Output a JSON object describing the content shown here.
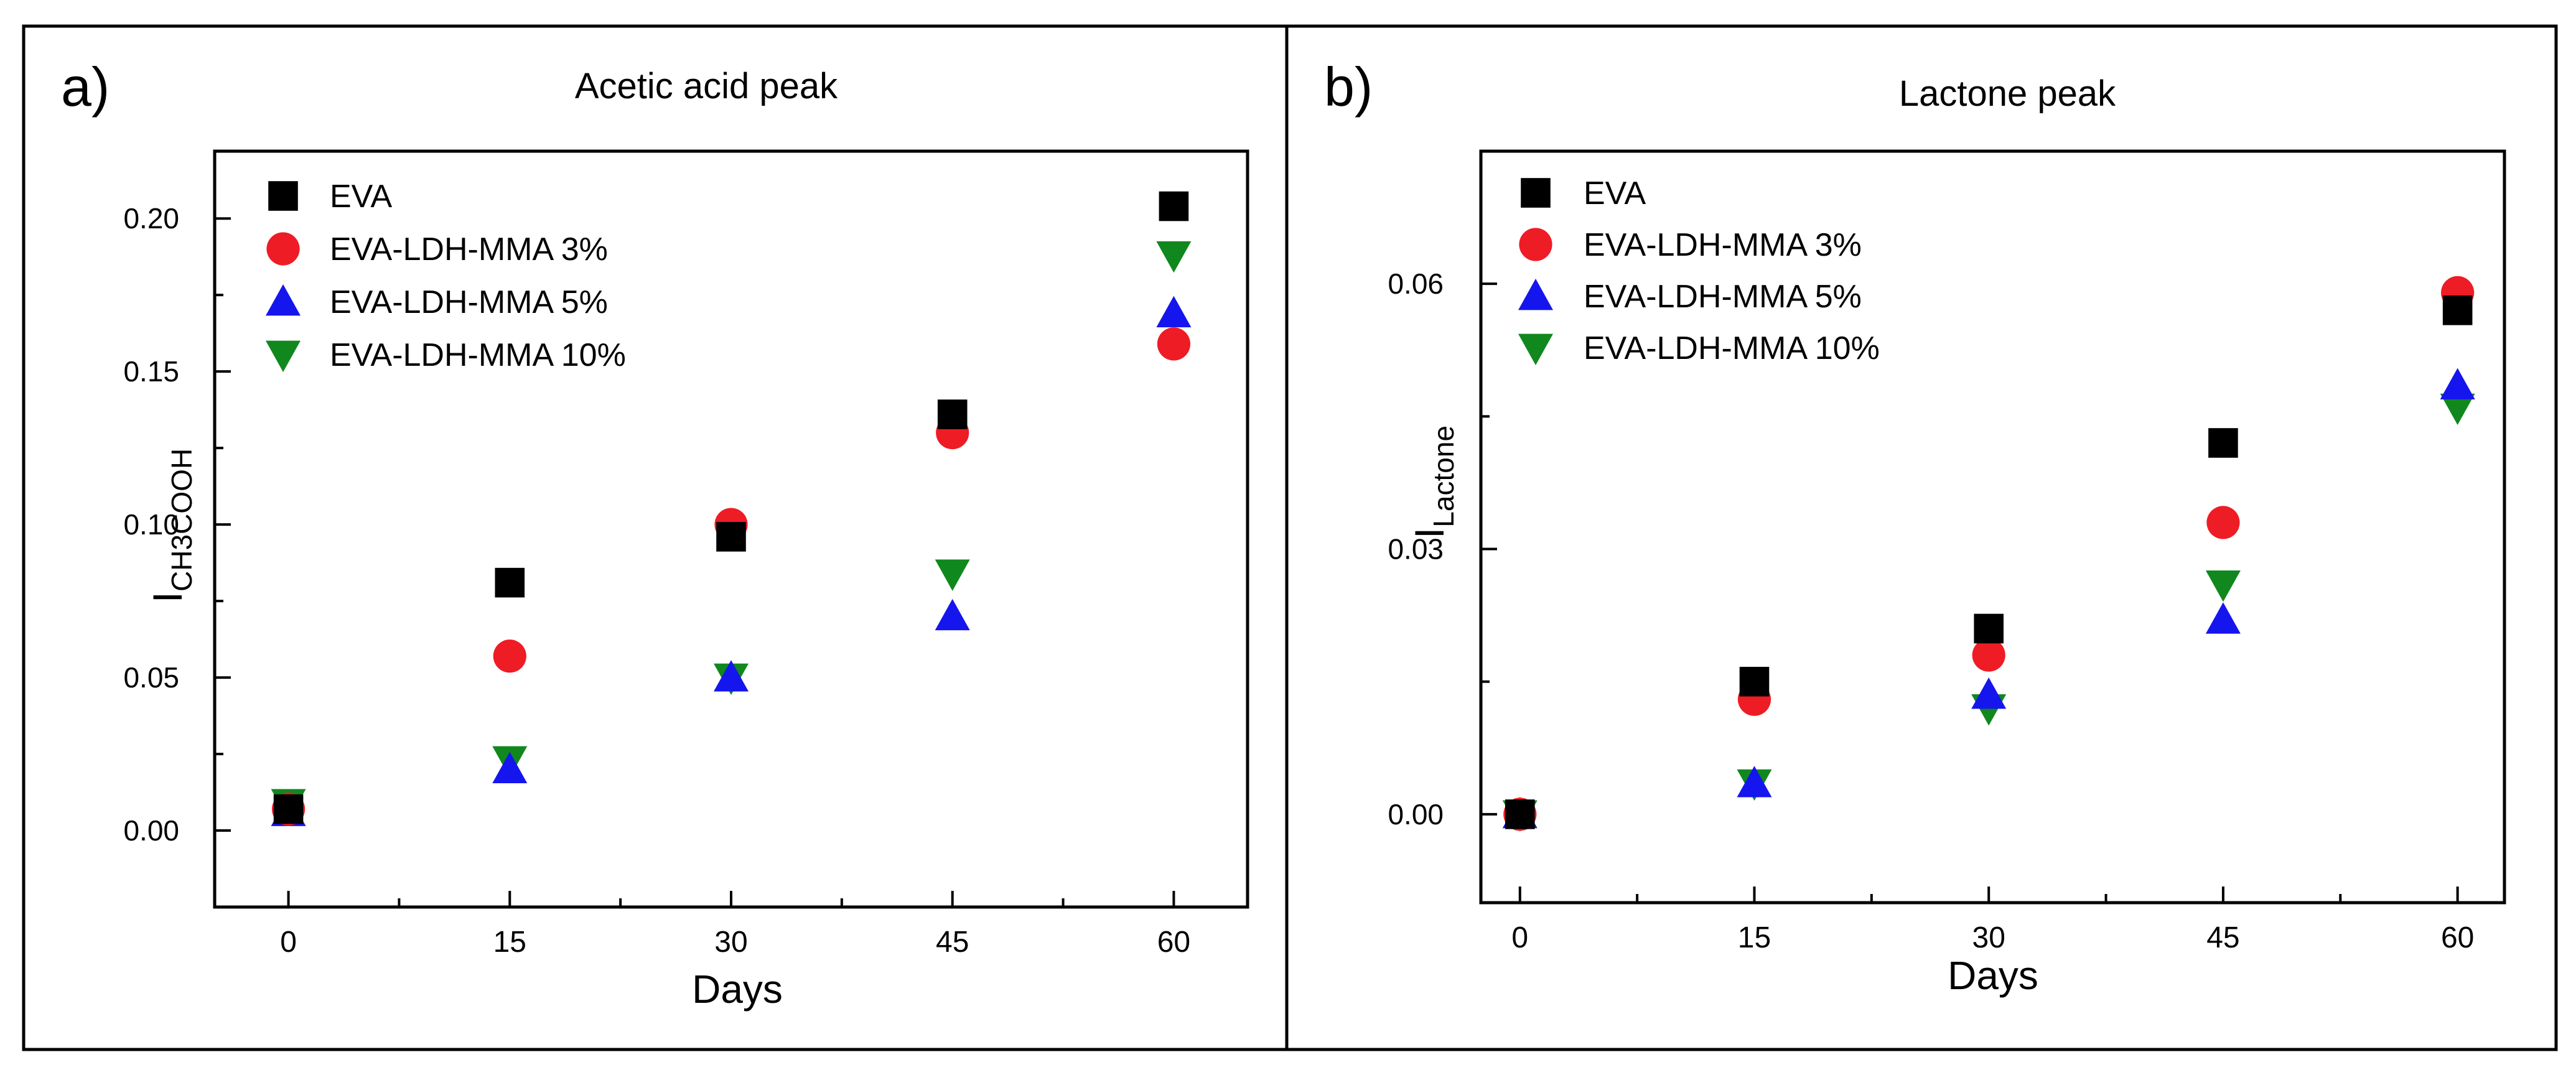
{
  "chart_data": [
    {
      "type": "scatter",
      "panel_label": "a)",
      "title": "Acetic acid peak",
      "xlabel": "Days",
      "ylabel": "I",
      "ylabel_sub": "CH3COOH",
      "xlim": [
        -5,
        65
      ],
      "ylim": [
        -0.025,
        0.222
      ],
      "xticks": [
        0,
        15,
        30,
        45,
        60
      ],
      "yticks": [
        0.0,
        0.05,
        0.1,
        0.15,
        0.2
      ],
      "xticklabels": [
        "0",
        "15",
        "30",
        "45",
        "60"
      ],
      "yticklabels": [
        "0.00",
        "0.05",
        "0.10",
        "0.15",
        "0.20"
      ],
      "legend_position": "top-left",
      "x": [
        0,
        15,
        30,
        45,
        60
      ],
      "series": [
        {
          "name": "EVA",
          "marker": "square",
          "color": "#000000",
          "values": [
            0.007,
            0.081,
            0.096,
            0.136,
            0.204
          ]
        },
        {
          "name": "EVA-LDH-MMA 3%",
          "marker": "circle",
          "color": "#ee1c25",
          "values": [
            0.007,
            0.057,
            0.1,
            0.13,
            0.159
          ]
        },
        {
          "name": "EVA-LDH-MMA 5%",
          "marker": "triangle-up",
          "color": "#1515ee",
          "values": [
            0.006,
            0.02,
            0.05,
            0.07,
            0.169
          ]
        },
        {
          "name": "EVA-LDH-MMA 10%",
          "marker": "triangle-down",
          "color": "#10881e",
          "values": [
            0.009,
            0.023,
            0.05,
            0.084,
            0.188
          ]
        }
      ]
    },
    {
      "type": "scatter",
      "panel_label": "b)",
      "title": "Lactone peak",
      "xlabel": "Days",
      "ylabel": "I",
      "ylabel_sub": "Lactone",
      "xlim": [
        -2.5,
        63
      ],
      "ylim": [
        -0.01,
        0.075
      ],
      "xticks": [
        0,
        15,
        30,
        45,
        60
      ],
      "yticks": [
        0.0,
        0.03,
        0.06
      ],
      "xticklabels": [
        "0",
        "15",
        "30",
        "45",
        "60"
      ],
      "yticklabels": [
        "0.00",
        "0.03",
        "0.06"
      ],
      "legend_position": "top-left",
      "x": [
        0,
        15,
        30,
        45,
        60
      ],
      "series": [
        {
          "name": "EVA",
          "marker": "square",
          "color": "#000000",
          "values": [
            0.0,
            0.015,
            0.021,
            0.042,
            0.057
          ]
        },
        {
          "name": "EVA-LDH-MMA 3%",
          "marker": "circle",
          "color": "#ee1c25",
          "values": [
            0.0,
            0.013,
            0.018,
            0.033,
            0.059
          ]
        },
        {
          "name": "EVA-LDH-MMA 5%",
          "marker": "triangle-up",
          "color": "#1515ee",
          "values": [
            0.0,
            0.0035,
            0.0135,
            0.022,
            0.0485
          ]
        },
        {
          "name": "EVA-LDH-MMA 10%",
          "marker": "triangle-down",
          "color": "#10881e",
          "values": [
            0.0,
            0.0035,
            0.012,
            0.026,
            0.046
          ]
        }
      ]
    }
  ]
}
